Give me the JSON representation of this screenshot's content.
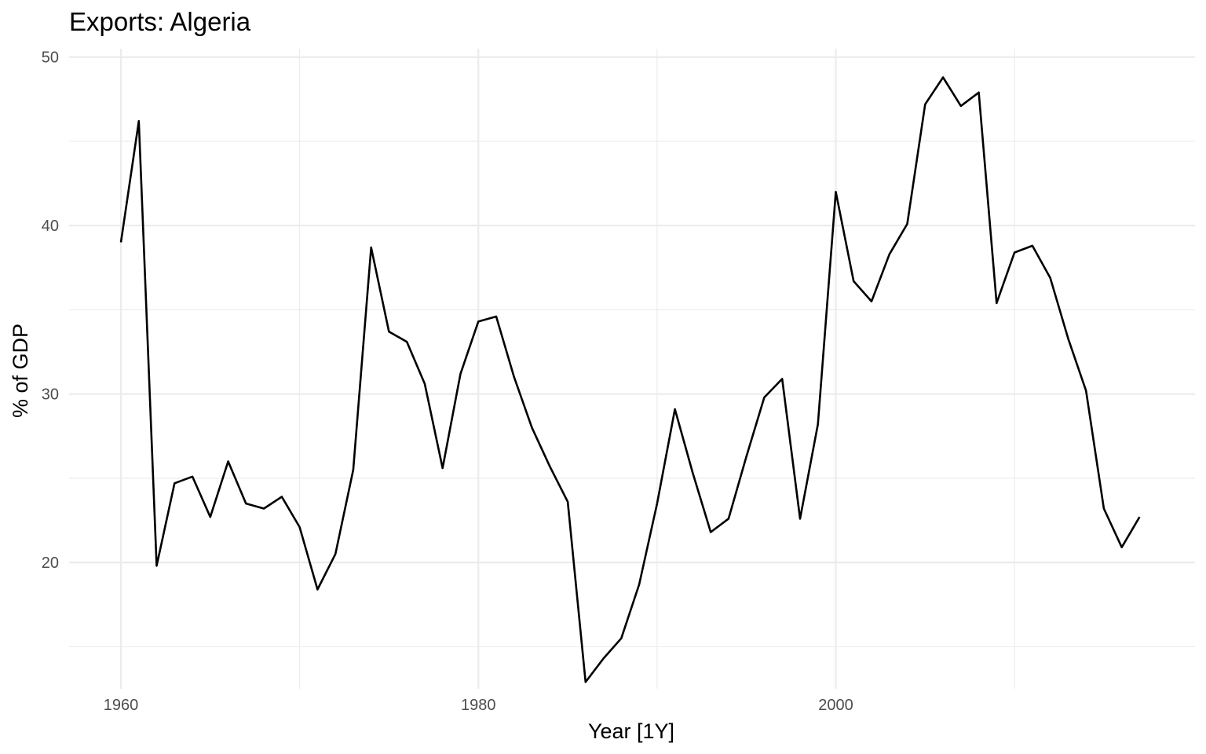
{
  "chart_data": {
    "type": "line",
    "title": "Exports: Algeria",
    "xlabel": "Year [1Y]",
    "ylabel": "% of GDP",
    "xlim": [
      1957.1,
      2020.1
    ],
    "ylim": [
      12.5,
      50.5
    ],
    "x_ticks": [
      1960,
      1980,
      2000
    ],
    "x_minor_ticks": [
      1970,
      1990,
      2010
    ],
    "y_ticks": [
      20,
      30,
      40,
      50
    ],
    "y_minor_ticks": [
      15,
      25,
      35,
      45
    ],
    "grid": true,
    "legend": "none",
    "line_color": "#000000",
    "series": [
      {
        "x": [
          1960,
          1961,
          1962,
          1963,
          1964,
          1965,
          1966,
          1967,
          1968,
          1969,
          1970,
          1971,
          1972,
          1973,
          1974,
          1975,
          1976,
          1977,
          1978,
          1979,
          1980,
          1981,
          1982,
          1983,
          1984,
          1985,
          1986,
          1987,
          1988,
          1989,
          1990,
          1991,
          1992,
          1993,
          1994,
          1995,
          1996,
          1997,
          1998,
          1999,
          2000,
          2001,
          2002,
          2003,
          2004,
          2005,
          2006,
          2007,
          2008,
          2009,
          2010,
          2011,
          2012,
          2013,
          2014,
          2015,
          2016,
          2017
        ],
        "values": [
          39.0,
          46.2,
          19.8,
          24.7,
          25.1,
          22.7,
          26.0,
          23.5,
          23.2,
          23.9,
          22.1,
          18.4,
          20.5,
          25.5,
          38.7,
          33.7,
          33.1,
          30.6,
          25.6,
          31.2,
          34.3,
          34.6,
          31.0,
          28.0,
          25.7,
          23.6,
          12.9,
          14.3,
          15.5,
          18.7,
          23.5,
          29.1,
          25.3,
          21.8,
          22.6,
          26.3,
          29.8,
          30.9,
          22.6,
          28.2,
          42.0,
          36.7,
          35.5,
          38.3,
          40.1,
          47.2,
          48.8,
          47.1,
          47.9,
          35.4,
          38.4,
          38.8,
          36.9,
          33.3,
          30.2,
          23.2,
          20.9,
          22.7
        ]
      }
    ]
  }
}
